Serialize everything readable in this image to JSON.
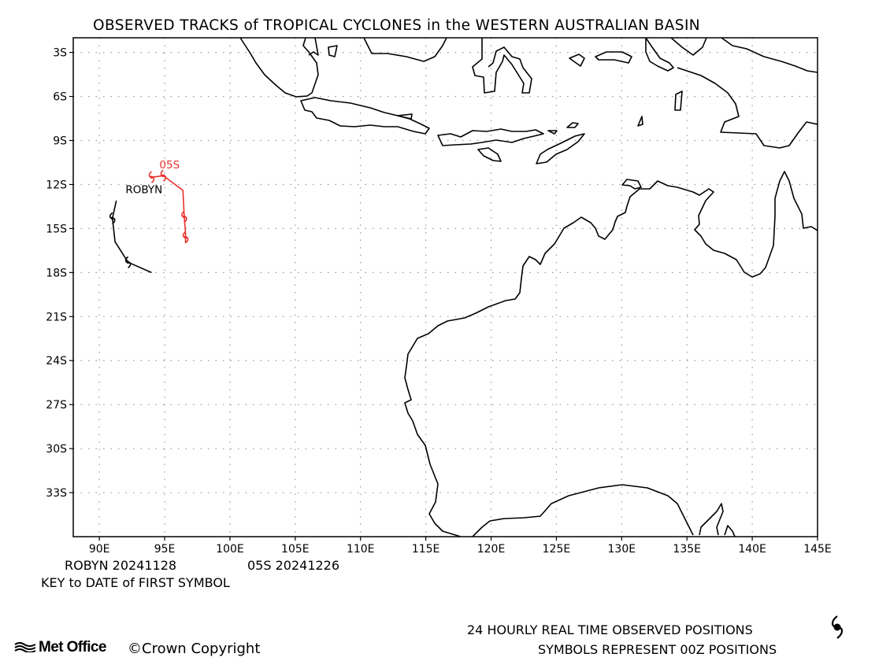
{
  "title": "OBSERVED TRACKS of TROPICAL CYCLONES in the WESTERN AUSTRALIAN BASIN",
  "map": {
    "lat_labels": [
      "3S",
      "6S",
      "9S",
      "12S",
      "15S",
      "18S",
      "21S",
      "24S",
      "27S",
      "30S",
      "33S"
    ],
    "lon_labels": [
      "90E",
      "95E",
      "100E",
      "105E",
      "110E",
      "115E",
      "120E",
      "125E",
      "130E",
      "135E",
      "140E",
      "145E"
    ],
    "gridlines": "dotted",
    "colors": {
      "robyn": "#000000",
      "05s": "#e8312b",
      "coast": "#000000"
    }
  },
  "storms": [
    {
      "name": "ROBYN",
      "label": "ROBYN",
      "key_date": "20241128",
      "color": "#000000",
      "track": [
        [
          91.3,
          13.1
        ],
        [
          91.0,
          14.3
        ],
        [
          91.2,
          15.9
        ],
        [
          92.2,
          17.3
        ],
        [
          94.0,
          18.0
        ]
      ]
    },
    {
      "name": "05S",
      "label": "05S",
      "key_date": "20241226",
      "color": "#e8312b",
      "track": [
        [
          94.0,
          11.5
        ],
        [
          94.9,
          11.4
        ],
        [
          96.4,
          12.4
        ],
        [
          96.5,
          14.2
        ],
        [
          96.6,
          15.3
        ],
        [
          96.6,
          16.0
        ]
      ]
    }
  ],
  "key": {
    "robyn": "ROBYN 20241128",
    "s05": "05S 20241226",
    "caption": "KEY to DATE of FIRST SYMBOL"
  },
  "legend": {
    "line1": "24 HOURLY REAL TIME OBSERVED POSITIONS",
    "line2": "SYMBOLS REPRESENT 00Z POSITIONS",
    "symbol_icon": "cyclone-symbol-icon"
  },
  "footer": {
    "logo": "Met Office",
    "copyright": "Crown Copyright"
  }
}
